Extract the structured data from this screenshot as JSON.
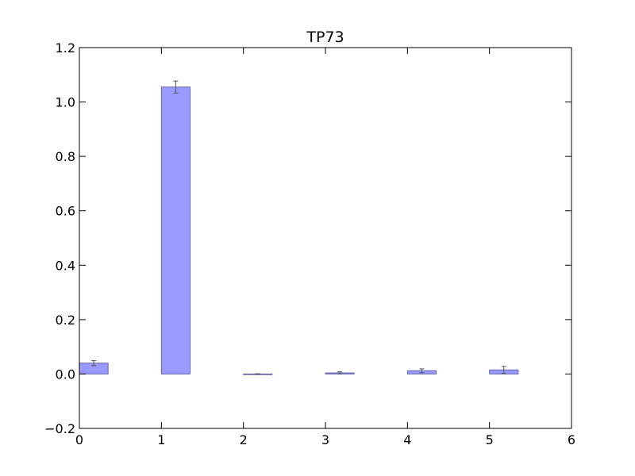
{
  "chart_data": {
    "type": "bar",
    "title": "TP73",
    "xlabel": "",
    "ylabel": "",
    "x": [
      0,
      1,
      2,
      3,
      4,
      5
    ],
    "values": [
      0.04,
      1.055,
      0.0,
      0.004,
      0.012,
      0.015
    ],
    "errors": [
      0.009,
      0.022,
      0.001,
      0.004,
      0.007,
      0.013
    ],
    "bar_width": 0.35,
    "xlim": [
      0,
      6
    ],
    "ylim": [
      -0.2,
      1.2
    ],
    "xticks": [
      0,
      1,
      2,
      3,
      4,
      5,
      6
    ],
    "xtick_labels": [
      "0",
      "1",
      "2",
      "3",
      "4",
      "5",
      "6"
    ],
    "yticks": [
      -0.2,
      0.0,
      0.2,
      0.4,
      0.6,
      0.8,
      1.0,
      1.2
    ],
    "ytick_labels": [
      "−0.2",
      "0.0",
      "0.2",
      "0.4",
      "0.6",
      "0.8",
      "1.0",
      "1.2"
    ],
    "grid": false,
    "legend": "none",
    "colors": {
      "bar_fill": "#9999ff",
      "bar_edge": "#6666aa",
      "error_bar": "#555555",
      "axis": "#000000"
    }
  }
}
